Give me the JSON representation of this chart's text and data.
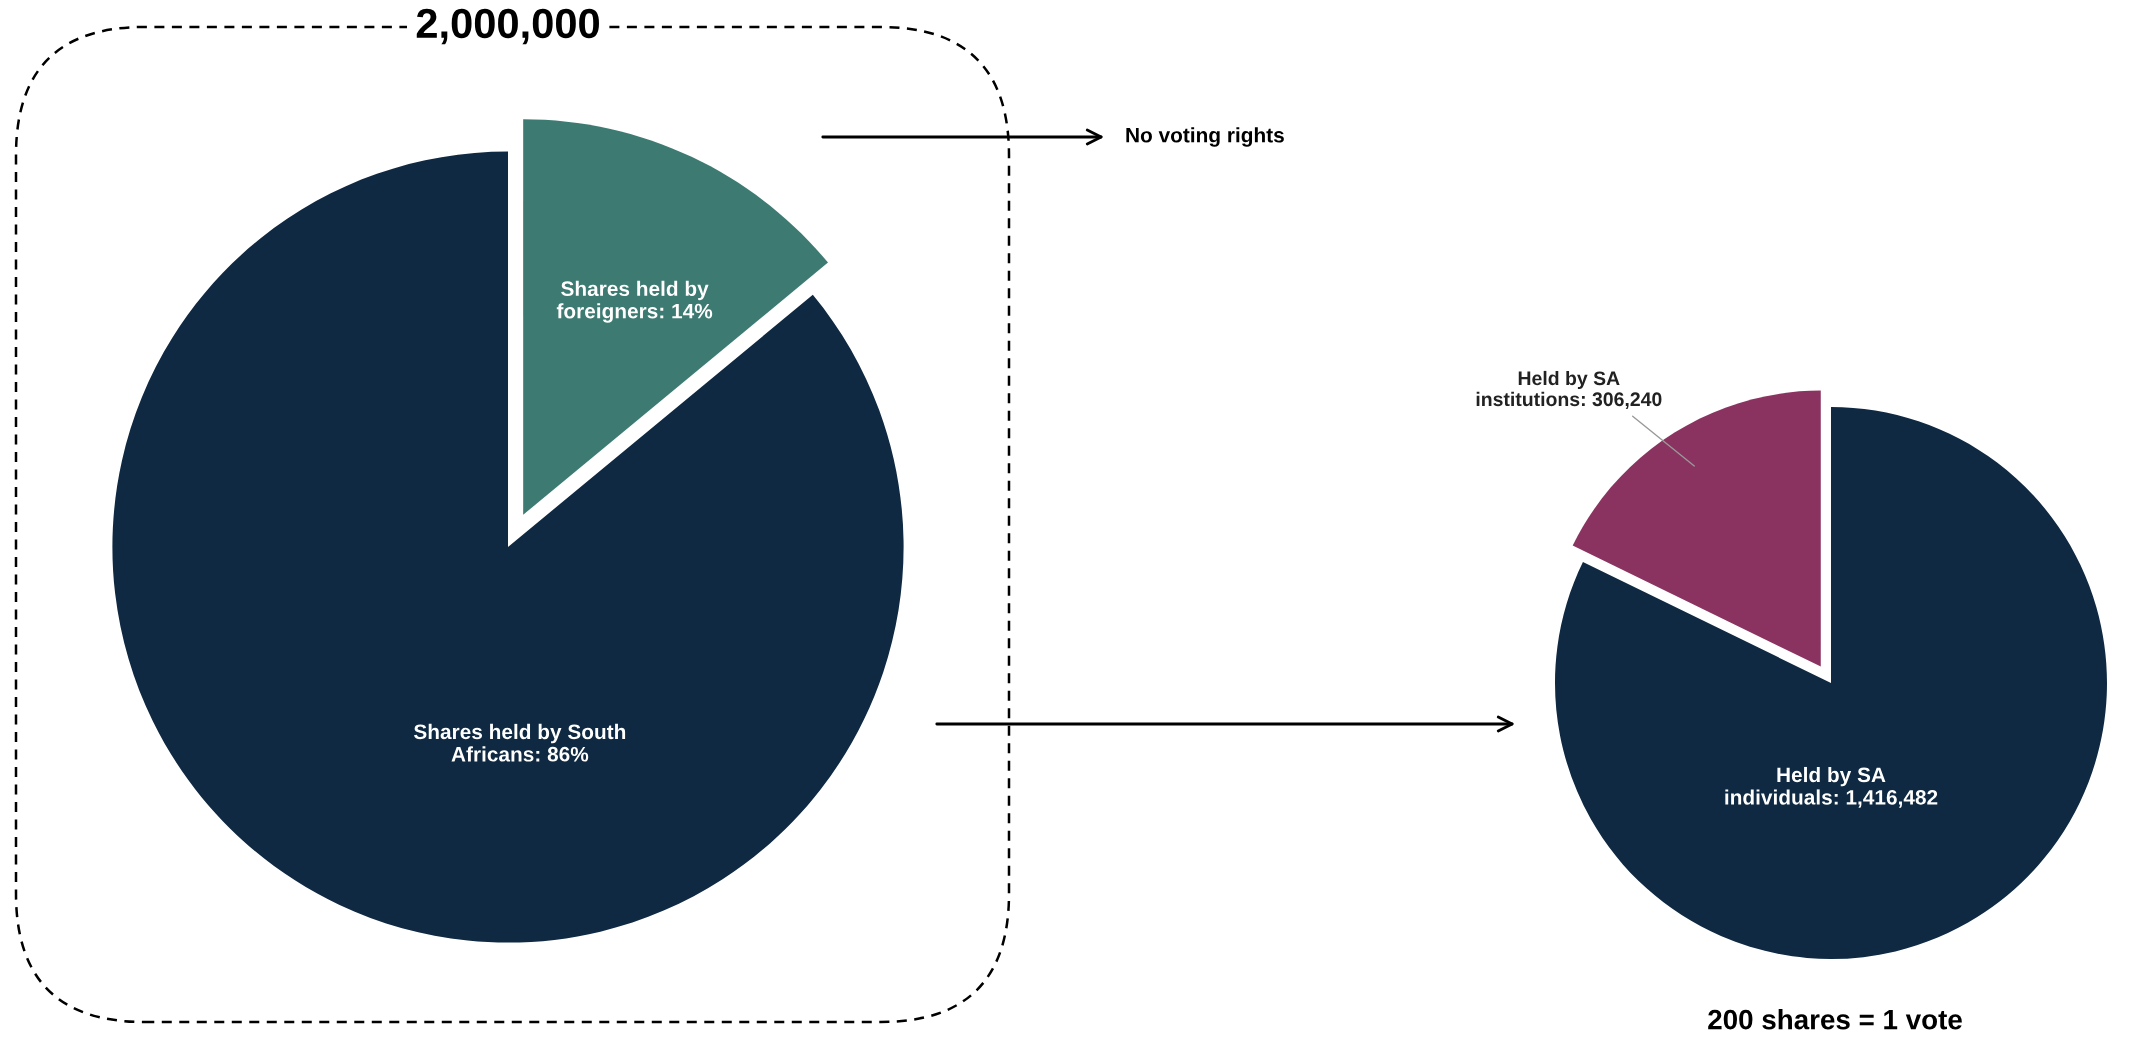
{
  "chart_data": [
    {
      "type": "pie",
      "title": "2,000,000",
      "categories": [
        "Shares held by\nforeigners",
        "Shares held by South\nAfricans"
      ],
      "values": [
        14,
        86
      ],
      "value_labels": [
        "14%",
        "86%"
      ],
      "colors": [
        "#3d7a72",
        "#0f2942"
      ],
      "annotations": [
        "No voting rights"
      ]
    },
    {
      "type": "pie",
      "categories": [
        "Held by SA\nindividuals",
        "Held by SA\ninstitutions"
      ],
      "values": [
        1416482,
        306240
      ],
      "value_labels": [
        "1,416,482",
        "306,240"
      ],
      "colors": [
        "#0f2942",
        "#8b3360"
      ],
      "annotations": [
        "200 shares = 1 vote"
      ]
    }
  ]
}
